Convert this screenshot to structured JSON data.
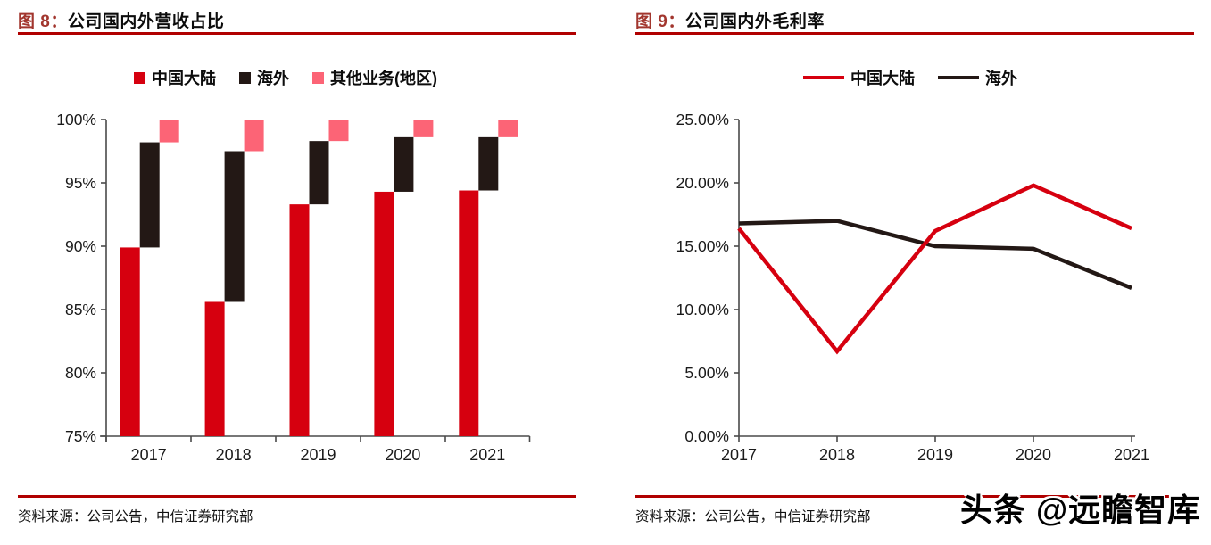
{
  "panels": {
    "left": {
      "figure_label": "图 8：",
      "title": "公司国内外营收占比",
      "source": "资料来源：公司公告，中信证券研究部"
    },
    "right": {
      "figure_label": "图 9：",
      "title": "公司国内外毛利率",
      "source": "资料来源：公司公告，中信证券研究部"
    }
  },
  "watermark": "头条 @远瞻智库",
  "colors": {
    "mainland_red": "#d6000f",
    "overseas_black": "#231815",
    "other_pink": "#fc6476",
    "rule_red": "#b00000",
    "axis_gray": "#4a4a4a"
  },
  "chart_data": [
    {
      "type": "bar",
      "subtype": "stacked-stepped",
      "title": "公司国内外营收占比",
      "categories": [
        "2017",
        "2018",
        "2019",
        "2020",
        "2021"
      ],
      "series": [
        {
          "name": "中国大陆",
          "color": "#d6000f",
          "values": [
            89.9,
            85.6,
            93.3,
            94.3,
            94.4
          ]
        },
        {
          "name": "海外",
          "color": "#231815",
          "values": [
            8.3,
            11.9,
            5.0,
            4.3,
            4.2
          ]
        },
        {
          "name": "其他业务(地区)",
          "color": "#fc6476",
          "values": [
            1.8,
            2.5,
            1.7,
            1.4,
            1.4
          ]
        }
      ],
      "ylim": [
        75,
        100
      ],
      "yticks": [
        75,
        80,
        85,
        90,
        95,
        100
      ],
      "ytick_format": "{v}%",
      "grid": false,
      "legend_position": "top"
    },
    {
      "type": "line",
      "title": "公司国内外毛利率",
      "categories": [
        "2017",
        "2018",
        "2019",
        "2020",
        "2021"
      ],
      "series": [
        {
          "name": "中国大陆",
          "color": "#d6000f",
          "values": [
            16.4,
            6.7,
            16.2,
            19.8,
            16.4
          ]
        },
        {
          "name": "海外",
          "color": "#231815",
          "values": [
            16.8,
            17.0,
            15.0,
            14.8,
            11.7
          ]
        }
      ],
      "ylim": [
        0,
        25
      ],
      "yticks": [
        0,
        5,
        10,
        15,
        20,
        25
      ],
      "ytick_format": "{v}.00%",
      "grid": false,
      "legend_position": "top"
    }
  ]
}
